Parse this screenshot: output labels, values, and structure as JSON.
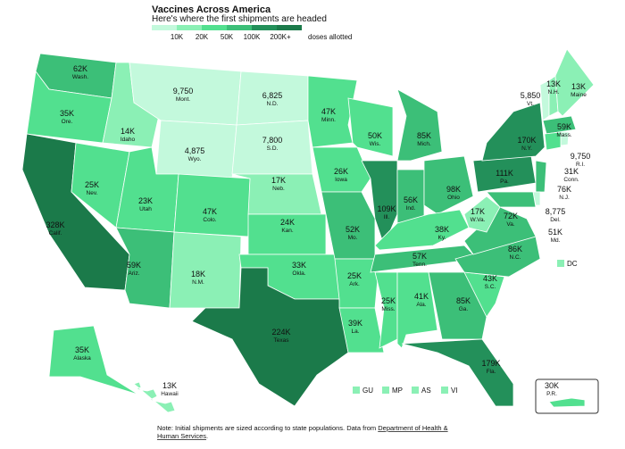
{
  "title": "Vaccines Across America",
  "subtitle": "Here's where the first shipments are headed",
  "legend": {
    "labels": [
      "10K",
      "20K",
      "50K",
      "100K",
      "200K+"
    ],
    "caption": "doses allotted",
    "colors": [
      "#c3f9dc",
      "#8bf0b5",
      "#52e08f",
      "#3cbf78",
      "#23905a",
      "#1b7a4a"
    ]
  },
  "states": [
    {
      "dose": "62K",
      "name": "Wash.",
      "color": "#3cbf78"
    },
    {
      "dose": "35K",
      "name": "Ore.",
      "color": "#52e08f"
    },
    {
      "dose": "328K",
      "name": "Calif.",
      "color": "#1b7a4a"
    },
    {
      "dose": "25K",
      "name": "Nev.",
      "color": "#52e08f"
    },
    {
      "dose": "14K",
      "name": "Idaho",
      "color": "#8bf0b5"
    },
    {
      "dose": "9,750",
      "name": "Mont.",
      "color": "#c3f9dc"
    },
    {
      "dose": "4,875",
      "name": "Wyo.",
      "color": "#c3f9dc"
    },
    {
      "dose": "23K",
      "name": "Utah",
      "color": "#52e08f"
    },
    {
      "dose": "59K",
      "name": "Ariz.",
      "color": "#3cbf78"
    },
    {
      "dose": "47K",
      "name": "Colo.",
      "color": "#52e08f"
    },
    {
      "dose": "18K",
      "name": "N.M.",
      "color": "#8bf0b5"
    },
    {
      "dose": "6,825",
      "name": "N.D.",
      "color": "#c3f9dc"
    },
    {
      "dose": "7,800",
      "name": "S.D.",
      "color": "#c3f9dc"
    },
    {
      "dose": "17K",
      "name": "Neb.",
      "color": "#8bf0b5"
    },
    {
      "dose": "24K",
      "name": "Kan.",
      "color": "#52e08f"
    },
    {
      "dose": "33K",
      "name": "Okla.",
      "color": "#52e08f"
    },
    {
      "dose": "224K",
      "name": "Texas",
      "color": "#1b7a4a"
    },
    {
      "dose": "47K",
      "name": "Minn.",
      "color": "#52e08f"
    },
    {
      "dose": "26K",
      "name": "Iowa",
      "color": "#52e08f"
    },
    {
      "dose": "52K",
      "name": "Mo.",
      "color": "#3cbf78"
    },
    {
      "dose": "25K",
      "name": "Ark.",
      "color": "#52e08f"
    },
    {
      "dose": "39K",
      "name": "La.",
      "color": "#52e08f"
    },
    {
      "dose": "50K",
      "name": "Wis.",
      "color": "#52e08f"
    },
    {
      "dose": "109K",
      "name": "Ill.",
      "color": "#23905a"
    },
    {
      "dose": "85K",
      "name": "Mich.",
      "color": "#3cbf78"
    },
    {
      "dose": "56K",
      "name": "Ind.",
      "color": "#3cbf78"
    },
    {
      "dose": "98K",
      "name": "Ohio",
      "color": "#3cbf78"
    },
    {
      "dose": "38K",
      "name": "Ky.",
      "color": "#52e08f"
    },
    {
      "dose": "57K",
      "name": "Tenn.",
      "color": "#3cbf78"
    },
    {
      "dose": "25K",
      "name": "Miss.",
      "color": "#52e08f"
    },
    {
      "dose": "41K",
      "name": "Ala.",
      "color": "#52e08f"
    },
    {
      "dose": "85K",
      "name": "Ga.",
      "color": "#3cbf78"
    },
    {
      "dose": "179K",
      "name": "Fla.",
      "color": "#23905a"
    },
    {
      "dose": "43K",
      "name": "S.C.",
      "color": "#52e08f"
    },
    {
      "dose": "86K",
      "name": "N.C.",
      "color": "#3cbf78"
    },
    {
      "dose": "72K",
      "name": "Va.",
      "color": "#3cbf78"
    },
    {
      "dose": "17K",
      "name": "W.Va.",
      "color": "#8bf0b5"
    },
    {
      "dose": "111K",
      "name": "Pa.",
      "color": "#23905a"
    },
    {
      "dose": "170K",
      "name": "N.Y.",
      "color": "#23905a"
    },
    {
      "dose": "5,850",
      "name": "Vt.",
      "color": "#c3f9dc"
    },
    {
      "dose": "13K",
      "name": "N.H.",
      "color": "#8bf0b5"
    },
    {
      "dose": "13K",
      "name": "Maine",
      "color": "#8bf0b5"
    },
    {
      "dose": "59K",
      "name": "Mass.",
      "color": "#3cbf78"
    },
    {
      "dose": "9,750",
      "name": "R.I.",
      "color": "#c3f9dc"
    },
    {
      "dose": "31K",
      "name": "Conn.",
      "color": "#52e08f"
    },
    {
      "dose": "76K",
      "name": "N.J.",
      "color": "#3cbf78"
    },
    {
      "dose": "8,775",
      "name": "Del.",
      "color": "#c3f9dc"
    },
    {
      "dose": "51K",
      "name": "Md.",
      "color": "#3cbf78"
    },
    {
      "dose": "35K",
      "name": "Alaska",
      "color": "#52e08f"
    },
    {
      "dose": "13K",
      "name": "Hawaii",
      "color": "#8bf0b5"
    },
    {
      "dose": "30K",
      "name": "P.R.",
      "color": "#52e08f"
    }
  ],
  "dc": {
    "name": "DC",
    "color": "#8bf0b5"
  },
  "territories": [
    {
      "name": "GU",
      "color": "#8bf0b5"
    },
    {
      "name": "MP",
      "color": "#8bf0b5"
    },
    {
      "name": "AS",
      "color": "#8bf0b5"
    },
    {
      "name": "VI",
      "color": "#8bf0b5"
    }
  ],
  "note": "Note: Initial shipments are sized according to state populations. Data from",
  "note_link": "Department of Health &",
  "note_link2": "Human Services",
  "note_end": "."
}
